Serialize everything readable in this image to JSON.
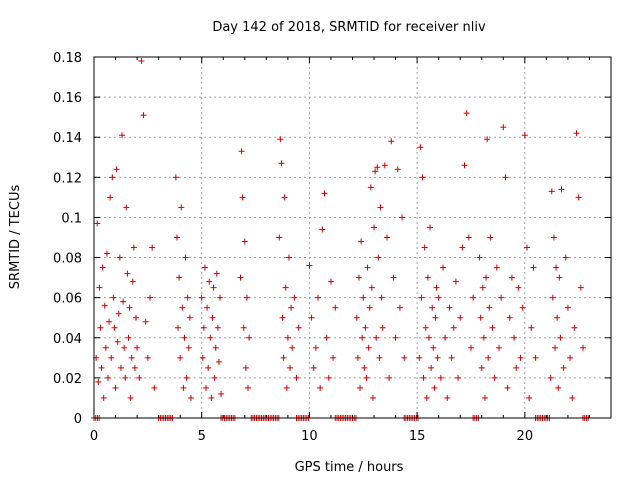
{
  "chart_data": {
    "type": "scatter",
    "title": "Day 142 of 2018, SRMTID for receiver nliv",
    "xlabel": "GPS time / hours",
    "ylabel": "SRMTID / TECUs",
    "xlim": [
      0,
      24
    ],
    "ylim": [
      0,
      0.18
    ],
    "x_ticks": [
      0,
      5,
      10,
      15,
      20
    ],
    "x_tick_labels": [
      "0",
      "5",
      "10",
      "15",
      "20"
    ],
    "y_ticks": [
      0,
      0.02,
      0.04,
      0.06,
      0.08,
      0.1,
      0.12,
      0.14,
      0.16,
      0.18
    ],
    "y_tick_labels": [
      "0",
      "0.02",
      "0.04",
      "0.06",
      "0.08",
      "0.1",
      "0.12",
      "0.14",
      "0.16",
      "0.18"
    ],
    "grid": true,
    "marker": "+",
    "color": "#d00000",
    "series": [
      {
        "name": "SRMTID",
        "x": [
          0.1,
          0.15,
          0.2,
          0.25,
          0.3,
          0.35,
          0.4,
          0.45,
          0.5,
          0.55,
          0.6,
          0.65,
          0.7,
          0.75,
          0.8,
          0.85,
          0.9,
          0.95,
          1.0,
          1.05,
          1.1,
          1.15,
          1.2,
          1.25,
          1.3,
          1.35,
          1.4,
          1.45,
          1.5,
          1.55,
          1.6,
          1.65,
          1.7,
          1.75,
          1.8,
          1.85,
          1.9,
          1.95,
          2.0,
          2.1,
          2.2,
          2.3,
          2.4,
          2.5,
          2.6,
          2.7,
          2.8,
          3.8,
          3.85,
          3.9,
          3.95,
          4.0,
          4.05,
          4.1,
          4.15,
          4.2,
          4.25,
          4.3,
          4.35,
          4.4,
          4.45,
          4.5,
          5.0,
          5.05,
          5.1,
          5.15,
          5.2,
          5.25,
          5.3,
          5.35,
          5.4,
          5.45,
          5.5,
          5.55,
          5.6,
          5.65,
          5.7,
          5.75,
          5.8,
          5.85,
          5.9,
          6.8,
          6.85,
          6.9,
          6.95,
          7.0,
          7.05,
          7.1,
          7.15,
          7.2,
          8.6,
          8.65,
          8.7,
          8.75,
          8.8,
          8.85,
          8.9,
          8.95,
          9.0,
          9.05,
          9.1,
          9.15,
          9.2,
          9.3,
          9.4,
          9.5,
          10.0,
          10.1,
          10.2,
          10.3,
          10.4,
          10.5,
          10.6,
          10.7,
          10.8,
          10.9,
          11.0,
          11.1,
          11.2,
          12.2,
          12.25,
          12.3,
          12.35,
          12.4,
          12.45,
          12.5,
          12.55,
          12.6,
          12.65,
          12.7,
          12.75,
          12.8,
          12.85,
          12.9,
          12.95,
          13.0,
          13.05,
          13.1,
          13.15,
          13.2,
          13.25,
          13.3,
          13.35,
          13.4,
          13.5,
          13.6,
          13.7,
          13.8,
          13.9,
          14.0,
          14.1,
          14.2,
          14.3,
          14.4,
          15.1,
          15.15,
          15.2,
          15.25,
          15.3,
          15.35,
          15.4,
          15.45,
          15.5,
          15.55,
          15.6,
          15.65,
          15.7,
          15.75,
          15.8,
          15.85,
          15.9,
          15.95,
          16.0,
          16.1,
          16.2,
          16.3,
          16.4,
          16.5,
          16.6,
          16.7,
          16.8,
          16.9,
          17.0,
          17.1,
          17.2,
          17.3,
          17.4,
          17.5,
          17.6,
          17.9,
          17.95,
          18.0,
          18.05,
          18.1,
          18.15,
          18.2,
          18.25,
          18.3,
          18.35,
          18.4,
          18.5,
          18.6,
          18.7,
          18.8,
          18.9,
          19.0,
          19.1,
          19.2,
          19.3,
          19.4,
          19.5,
          19.6,
          19.7,
          19.8,
          19.9,
          20.0,
          20.1,
          20.2,
          20.3,
          20.4,
          20.5,
          21.2,
          21.25,
          21.3,
          21.35,
          21.4,
          21.45,
          21.5,
          21.55,
          21.6,
          21.65,
          21.7,
          21.8,
          21.9,
          22.0,
          22.1,
          22.2,
          22.3,
          22.4,
          22.5,
          22.6,
          22.7
        ],
        "y": [
          0.03,
          0.097,
          0.018,
          0.065,
          0.045,
          0.025,
          0.075,
          0.01,
          0.056,
          0.035,
          0.082,
          0.02,
          0.048,
          0.11,
          0.03,
          0.12,
          0.06,
          0.045,
          0.015,
          0.124,
          0.038,
          0.052,
          0.08,
          0.025,
          0.141,
          0.058,
          0.035,
          0.02,
          0.105,
          0.072,
          0.04,
          0.055,
          0.01,
          0.03,
          0.068,
          0.085,
          0.025,
          0.05,
          0.035,
          0.02,
          0.178,
          0.151,
          0.048,
          0.03,
          0.06,
          0.085,
          0.015,
          0.12,
          0.09,
          0.045,
          0.07,
          0.03,
          0.105,
          0.055,
          0.015,
          0.04,
          0.08,
          0.02,
          0.06,
          0.035,
          0.05,
          0.01,
          0.06,
          0.03,
          0.045,
          0.075,
          0.015,
          0.055,
          0.025,
          0.068,
          0.04,
          0.01,
          0.05,
          0.065,
          0.02,
          0.035,
          0.072,
          0.045,
          0.028,
          0.06,
          0.012,
          0.07,
          0.133,
          0.11,
          0.045,
          0.088,
          0.025,
          0.06,
          0.015,
          0.04,
          0.09,
          0.139,
          0.127,
          0.05,
          0.03,
          0.11,
          0.065,
          0.015,
          0.04,
          0.08,
          0.025,
          0.055,
          0.035,
          0.06,
          0.02,
          0.045,
          0.076,
          0.05,
          0.025,
          0.035,
          0.06,
          0.015,
          0.094,
          0.112,
          0.04,
          0.02,
          0.068,
          0.03,
          0.055,
          0.05,
          0.03,
          0.07,
          0.015,
          0.088,
          0.04,
          0.06,
          0.025,
          0.045,
          0.02,
          0.075,
          0.035,
          0.055,
          0.115,
          0.065,
          0.01,
          0.095,
          0.123,
          0.04,
          0.125,
          0.08,
          0.03,
          0.105,
          0.06,
          0.045,
          0.126,
          0.09,
          0.02,
          0.138,
          0.07,
          0.04,
          0.124,
          0.055,
          0.1,
          0.03,
          0.03,
          0.135,
          0.06,
          0.12,
          0.02,
          0.085,
          0.045,
          0.01,
          0.07,
          0.04,
          0.095,
          0.025,
          0.055,
          0.035,
          0.015,
          0.05,
          0.065,
          0.03,
          0.06,
          0.02,
          0.075,
          0.04,
          0.01,
          0.055,
          0.03,
          0.045,
          0.068,
          0.02,
          0.05,
          0.085,
          0.126,
          0.152,
          0.09,
          0.035,
          0.06,
          0.08,
          0.05,
          0.025,
          0.065,
          0.04,
          0.01,
          0.07,
          0.139,
          0.03,
          0.055,
          0.09,
          0.045,
          0.02,
          0.075,
          0.035,
          0.06,
          0.145,
          0.12,
          0.015,
          0.05,
          0.07,
          0.04,
          0.025,
          0.065,
          0.03,
          0.055,
          0.141,
          0.085,
          0.01,
          0.045,
          0.075,
          0.03,
          0.02,
          0.113,
          0.06,
          0.09,
          0.035,
          0.075,
          0.05,
          0.015,
          0.07,
          0.04,
          0.114,
          0.025,
          0.08,
          0.055,
          0.03,
          0.01,
          0.045,
          0.142,
          0.11,
          0.065,
          0.035
        ],
        "zero_bands": [
          [
            0.0,
            0.25
          ],
          [
            3.0,
            3.7
          ],
          [
            5.9,
            6.6
          ],
          [
            7.3,
            8.6
          ],
          [
            9.4,
            10.0
          ],
          [
            11.2,
            12.2
          ],
          [
            14.4,
            15.1
          ],
          [
            17.6,
            17.9
          ],
          [
            20.5,
            21.2
          ],
          [
            22.7,
            23.0
          ]
        ]
      }
    ]
  }
}
